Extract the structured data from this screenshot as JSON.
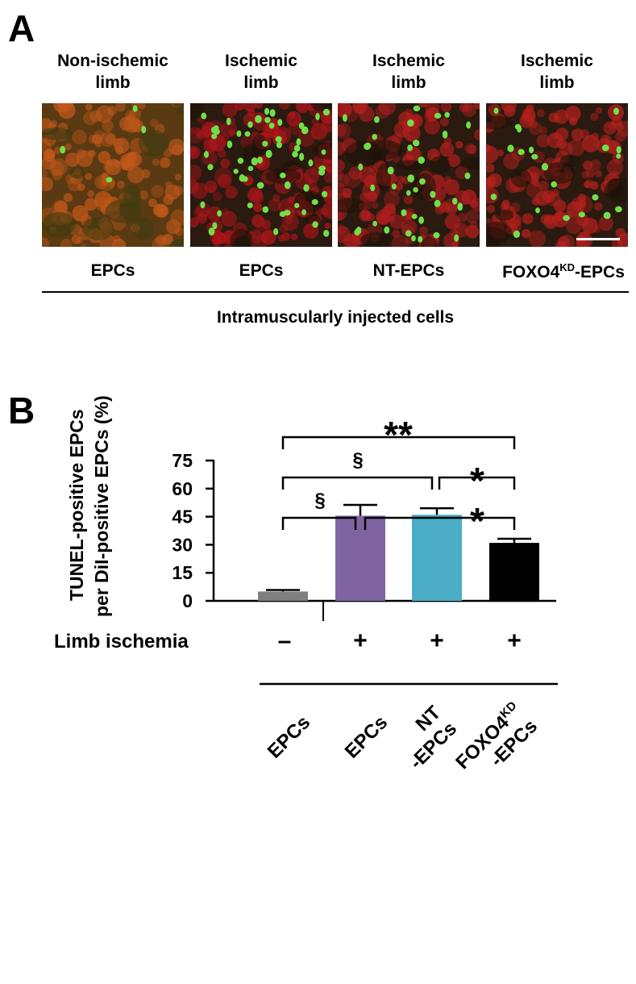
{
  "panel_a": {
    "letter": "A",
    "columns": [
      {
        "limb_line1": "Non-ischemic",
        "limb_line2": "limb",
        "cells": "EPCs",
        "tint": "#c2581a",
        "green_density": 0.06
      },
      {
        "limb_line1": "Ischemic",
        "limb_line2": "limb",
        "cells": "EPCs",
        "tint": "#b0151a",
        "green_density": 1.0
      },
      {
        "limb_line1": "Ischemic",
        "limb_line2": "limb",
        "cells": "NT-EPCs",
        "tint": "#b51e1e",
        "green_density": 0.65
      },
      {
        "limb_line1": "Ischemic",
        "limb_line2": "limb",
        "cells_main": "FOXO4",
        "cells_sup": "KD",
        "cells_tail": "-EPCs",
        "tint": "#b8211c",
        "green_density": 0.35
      }
    ],
    "caption": "Intramuscularly injected cells"
  },
  "panel_b": {
    "letter": "B"
  },
  "chart_data": {
    "type": "bar",
    "ylabel_line1": "TUNEL-positive EPCs",
    "ylabel_line2": "per DiI-positive EPCs (%)",
    "ylim": [
      0,
      75
    ],
    "yticks": [
      "0",
      "15",
      "30",
      "45",
      "60",
      "75"
    ],
    "categories": [
      "EPCs",
      "EPCs",
      "NT -EPCs",
      "FOXO4KD -EPCs"
    ],
    "values": [
      5,
      45.5,
      46,
      31
    ],
    "errors": [
      0.8,
      5.8,
      3.5,
      2.2
    ],
    "colors": [
      "#7f7f7f",
      "#8064a2",
      "#4bacc6",
      "#000000"
    ],
    "row_label": "Limb ischemia",
    "ischemia": [
      "–",
      "+",
      "+",
      "+"
    ],
    "comparisons": [
      {
        "from": 0,
        "to": 3,
        "label": "**"
      },
      {
        "from": 0,
        "to": 2,
        "label": "§"
      },
      {
        "from": 2,
        "to": 3,
        "label": "*"
      },
      {
        "from": 0,
        "to": 1,
        "label": "§"
      },
      {
        "from": 1,
        "to": 3,
        "label": "*"
      }
    ],
    "grid": false,
    "legend": "none"
  }
}
